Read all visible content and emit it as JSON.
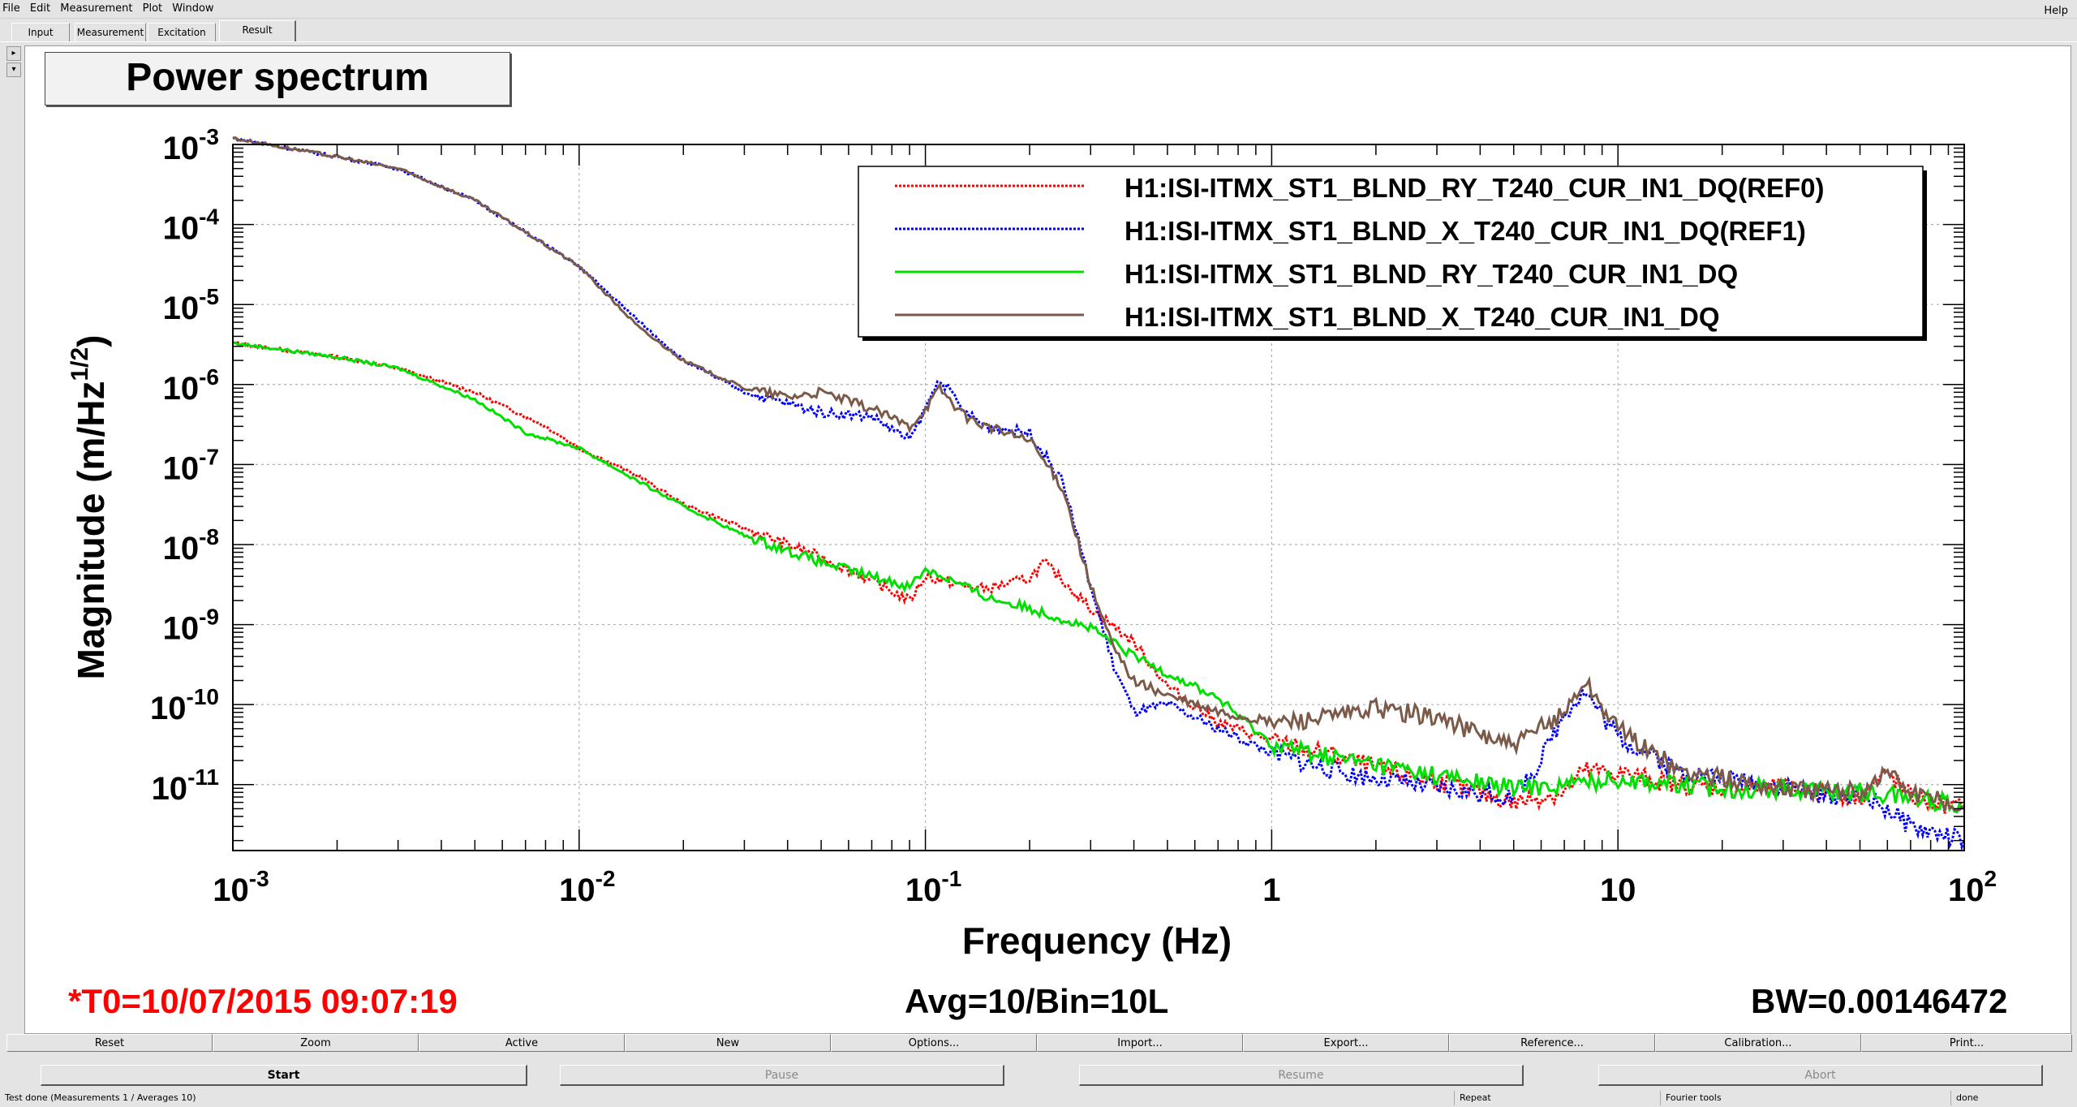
{
  "menu": {
    "items": [
      "File",
      "Edit",
      "Measurement",
      "Plot",
      "Window"
    ],
    "help": "Help"
  },
  "tabs": [
    "Input",
    "Measurement",
    "Excitation",
    "Result"
  ],
  "active_tab": "Result",
  "plot_title": "Power spectrum",
  "info": {
    "t0": "*T0=10/07/2015 09:07:19",
    "avg": "Avg=10/Bin=10L",
    "bw": "BW=0.00146472"
  },
  "colors": {
    "ref0": "#ff0000",
    "ref1": "#0000ff",
    "ry": "#00e000",
    "x": "#7b5a4a",
    "t0_text": "#ff0000"
  },
  "chart_data": {
    "type": "line",
    "title": "Power spectrum",
    "xlabel": "Frequency (Hz)",
    "ylabel": "Magnitude (m/Hz^1/2)",
    "xscale": "log",
    "yscale": "log",
    "xlim": [
      0.001,
      100
    ],
    "ylim": [
      1.5e-12,
      0.001
    ],
    "grid": true,
    "legend_position": "top-right",
    "xticks": [
      "10^-3",
      "10^-2",
      "10^-1",
      "1",
      "10",
      "10^2"
    ],
    "yticks": [
      "10^-3",
      "10^-4",
      "10^-5",
      "10^-6",
      "10^-7",
      "10^-8",
      "10^-9",
      "10^-10",
      "10^-11"
    ],
    "series": [
      {
        "name": "H1:ISI-ITMX_ST1_BLND_RY_T240_CUR_IN1_DQ(REF0)",
        "color": "#ff0000",
        "style": "dotted",
        "x": [
          0.001,
          0.002,
          0.003,
          0.005,
          0.008,
          0.01,
          0.015,
          0.02,
          0.03,
          0.05,
          0.07,
          0.09,
          0.1,
          0.13,
          0.15,
          0.2,
          0.22,
          0.25,
          0.3,
          0.4,
          0.5,
          0.7,
          1,
          1.5,
          2,
          3,
          5,
          7,
          8,
          10,
          15,
          20,
          30,
          50,
          60,
          70,
          100
        ],
        "y": [
          3.3e-06,
          2.2e-06,
          1.6e-06,
          8e-07,
          3e-07,
          1.6e-07,
          7e-08,
          3.2e-08,
          1.6e-08,
          7e-09,
          3.5e-09,
          2e-09,
          4e-09,
          3e-09,
          2.8e-09,
          3.8e-09,
          6e-09,
          3.5e-09,
          1.6e-09,
          6e-10,
          1.7e-10,
          6e-11,
          3.5e-11,
          2.3e-11,
          1.6e-11,
          1.1e-11,
          6e-12,
          8e-12,
          1.5e-11,
          1.4e-11,
          1e-11,
          9e-12,
          9e-12,
          7e-12,
          1.4e-11,
          7e-12,
          5e-12
        ]
      },
      {
        "name": "H1:ISI-ITMX_ST1_BLND_X_T240_CUR_IN1_DQ(REF1)",
        "color": "#0000ff",
        "style": "dotted",
        "x": [
          0.001,
          0.002,
          0.003,
          0.005,
          0.007,
          0.01,
          0.015,
          0.02,
          0.03,
          0.05,
          0.07,
          0.09,
          0.1,
          0.11,
          0.13,
          0.15,
          0.2,
          0.25,
          0.3,
          0.35,
          0.4,
          0.5,
          0.7,
          1,
          1.5,
          2,
          3,
          5,
          6,
          7,
          8,
          10,
          15,
          20,
          30,
          40,
          50,
          60,
          70,
          100
        ],
        "y": [
          0.0012,
          0.0007,
          0.0005,
          0.0002,
          8e-05,
          3e-05,
          6e-06,
          2e-06,
          8e-07,
          4.5e-07,
          4e-07,
          2e-07,
          5e-07,
          1.2e-06,
          4.5e-07,
          3e-07,
          2.5e-07,
          6e-08,
          3e-09,
          3e-10,
          8e-11,
          1e-10,
          5e-11,
          2.5e-11,
          1.5e-11,
          1.2e-11,
          9e-12,
          7e-12,
          2e-11,
          8e-11,
          1.5e-10,
          4e-11,
          1.5e-11,
          1.2e-11,
          1e-11,
          7e-12,
          8e-12,
          5e-12,
          3e-12,
          2e-12
        ]
      },
      {
        "name": "H1:ISI-ITMX_ST1_BLND_RY_T240_CUR_IN1_DQ",
        "color": "#00e000",
        "style": "solid",
        "x": [
          0.001,
          0.002,
          0.003,
          0.005,
          0.007,
          0.01,
          0.015,
          0.02,
          0.03,
          0.05,
          0.07,
          0.09,
          0.1,
          0.13,
          0.15,
          0.2,
          0.3,
          0.4,
          0.5,
          0.7,
          1,
          1.5,
          2,
          3,
          5,
          7,
          10,
          15,
          20,
          30,
          50,
          70,
          100
        ],
        "y": [
          3.3e-06,
          2.2e-06,
          1.6e-06,
          6.5e-07,
          2.5e-07,
          1.6e-07,
          6e-08,
          3e-08,
          1.3e-08,
          6e-09,
          4e-09,
          3e-09,
          5e-09,
          3e-09,
          2.2e-09,
          1.6e-09,
          9e-10,
          4e-10,
          2.5e-10,
          1.2e-10,
          3.2e-11,
          2.2e-11,
          1.8e-11,
          1.3e-11,
          9e-12,
          1e-11,
          1.2e-11,
          1e-11,
          9e-12,
          9e-12,
          8e-12,
          7e-12,
          5.5e-12
        ]
      },
      {
        "name": "H1:ISI-ITMX_ST1_BLND_X_T240_CUR_IN1_DQ",
        "color": "#7b5a4a",
        "style": "solid",
        "x": [
          0.001,
          0.002,
          0.003,
          0.005,
          0.007,
          0.01,
          0.015,
          0.02,
          0.03,
          0.04,
          0.05,
          0.07,
          0.09,
          0.1,
          0.11,
          0.13,
          0.15,
          0.2,
          0.25,
          0.3,
          0.35,
          0.4,
          0.5,
          0.7,
          1,
          1.5,
          2,
          3,
          5,
          7,
          8,
          10,
          15,
          20,
          30,
          50,
          60,
          70,
          100
        ],
        "y": [
          0.0012,
          0.0007,
          0.0005,
          0.0002,
          8e-05,
          3e-05,
          5e-06,
          2e-06,
          9e-07,
          7e-07,
          8e-07,
          5e-07,
          3e-07,
          5e-07,
          9e-07,
          4e-07,
          3e-07,
          2e-07,
          5e-08,
          3e-09,
          5e-10,
          2e-10,
          1.3e-10,
          8e-11,
          6e-11,
          7e-11,
          9e-11,
          7e-11,
          3e-11,
          8e-11,
          2e-10,
          5e-11,
          1.5e-11,
          1.2e-11,
          9e-12,
          8e-12,
          1.5e-11,
          8e-12,
          5e-12
        ]
      }
    ]
  },
  "buttons_row1": [
    "Reset",
    "Zoom",
    "Active",
    "New",
    "Options...",
    "Import...",
    "Export...",
    "Reference...",
    "Calibration...",
    "Print..."
  ],
  "buttons_row2": [
    "Start",
    "Pause",
    "Resume",
    "Abort"
  ],
  "status": {
    "msg": "Test done (Measurements 1 / Averages 10)",
    "repeat": "Repeat",
    "tool": "Fourier tools",
    "state": "done"
  }
}
